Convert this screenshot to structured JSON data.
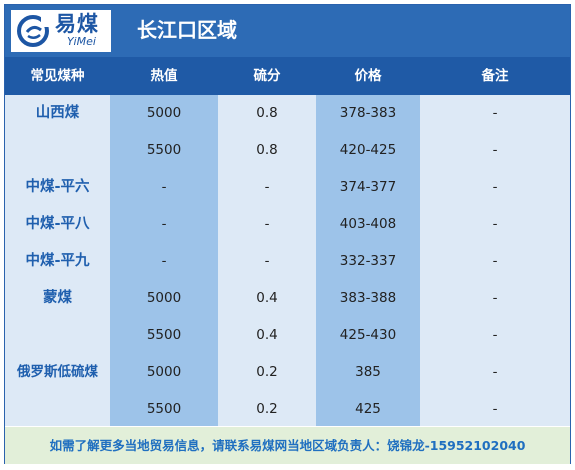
{
  "logo": {
    "cn": "易煤",
    "en": "YiMei"
  },
  "region_title": "长江口区域",
  "columns": [
    "常见煤种",
    "热值",
    "硫分",
    "价格",
    "备注"
  ],
  "rows": [
    {
      "name": "山西煤",
      "heat": "5000",
      "sulfur": "0.8",
      "price": "378-383",
      "note": "-"
    },
    {
      "name": "",
      "heat": "5500",
      "sulfur": "0.8",
      "price": "420-425",
      "note": "-"
    },
    {
      "name": "中煤-平六",
      "heat": "-",
      "sulfur": "-",
      "price": "374-377",
      "note": "-"
    },
    {
      "name": "中煤-平八",
      "heat": "-",
      "sulfur": "-",
      "price": "403-408",
      "note": "-"
    },
    {
      "name": "中煤-平九",
      "heat": "-",
      "sulfur": "-",
      "price": "332-337",
      "note": "-"
    },
    {
      "name": "蒙煤",
      "heat": "5000",
      "sulfur": "0.4",
      "price": "383-388",
      "note": "-"
    },
    {
      "name": "",
      "heat": "5500",
      "sulfur": "0.4",
      "price": "425-430",
      "note": "-"
    },
    {
      "name": "俄罗斯低硫煤",
      "heat": "5000",
      "sulfur": "0.2",
      "price": "385",
      "note": "-"
    },
    {
      "name": "",
      "heat": "5500",
      "sulfur": "0.2",
      "price": "425",
      "note": "-"
    }
  ],
  "footer": "如需了解更多当地贸易信息，请联系易煤网当地区域负责人：饶锦龙-15952102040",
  "colors": {
    "brand_blue": "#2d6bb5",
    "header_blue": "#1f5aa6",
    "column_highlight": "#9dc3e9",
    "table_bg": "#dde9f6",
    "footer_bg": "#e2efd9"
  }
}
